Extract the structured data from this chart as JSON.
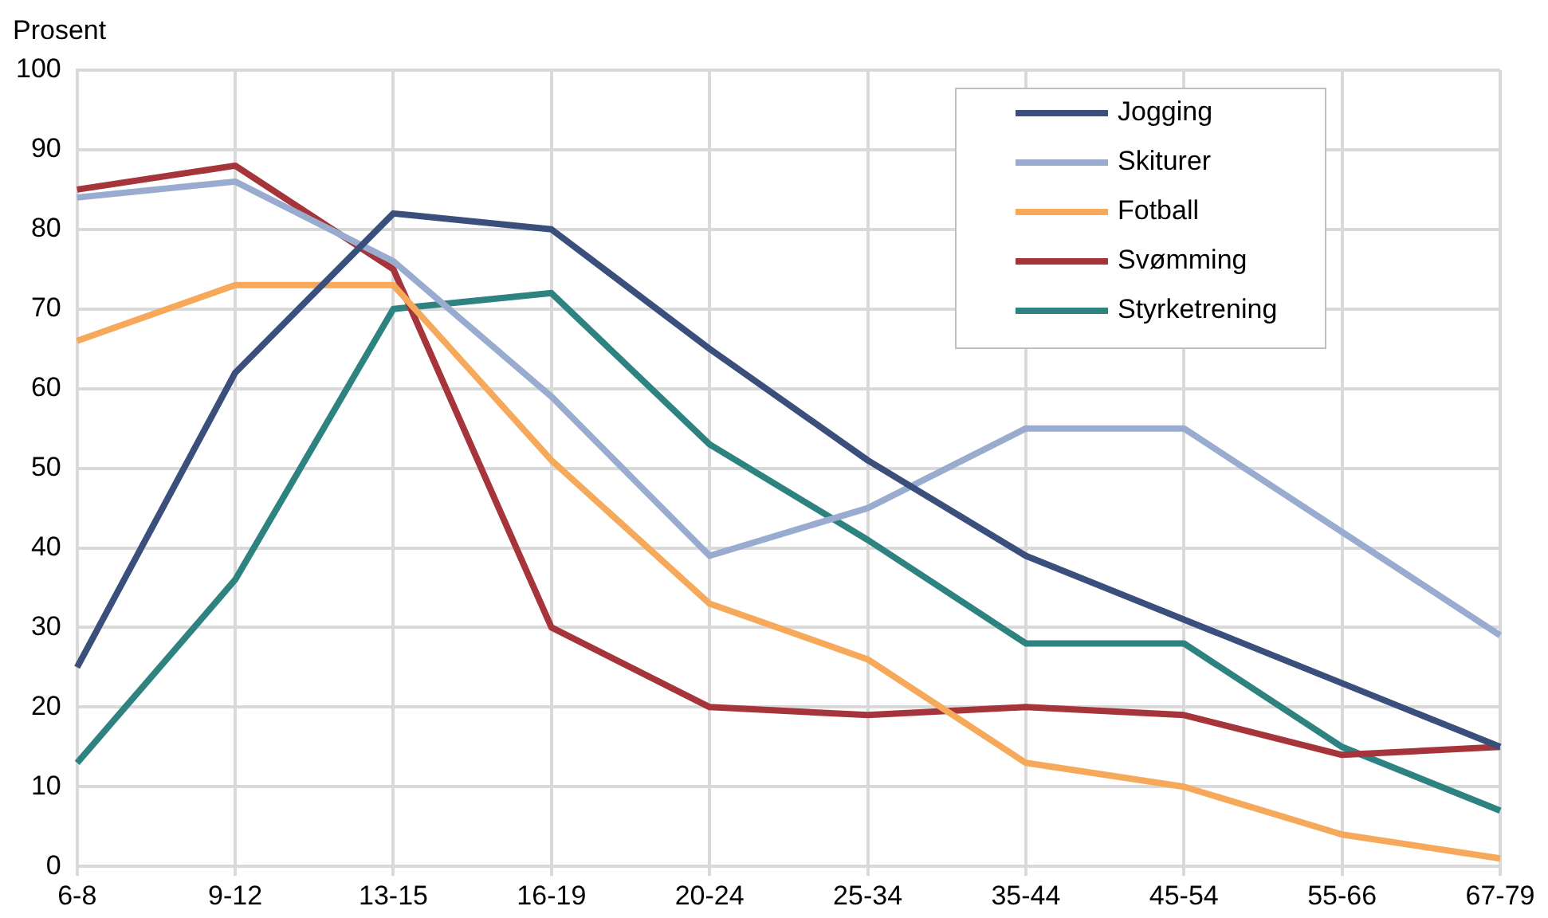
{
  "chart_data": {
    "type": "line",
    "ylabel": "Prosent",
    "categories": [
      "6-8",
      "9-12",
      "13-15",
      "16-19",
      "20-24",
      "25-34",
      "35-44",
      "45-54",
      "55-66",
      "67-79"
    ],
    "series": [
      {
        "name": "Jogging",
        "color": "#3b4f7d",
        "values": [
          25,
          62,
          82,
          80,
          65,
          51,
          39,
          31,
          23,
          15
        ]
      },
      {
        "name": "Skiturer",
        "color": "#9aabd0",
        "values": [
          84,
          86,
          76,
          59,
          39,
          45,
          55,
          55,
          42,
          29
        ]
      },
      {
        "name": "Fotball",
        "color": "#f6a95a",
        "values": [
          66,
          73,
          73,
          51,
          33,
          26,
          13,
          10,
          4,
          1
        ]
      },
      {
        "name": "Svømming",
        "color": "#a5353a",
        "values": [
          85,
          88,
          75,
          30,
          20,
          19,
          20,
          19,
          14,
          15
        ]
      },
      {
        "name": "Styrketrening",
        "color": "#2e8381",
        "values": [
          13,
          36,
          70,
          72,
          53,
          41,
          28,
          28,
          15,
          7
        ]
      }
    ],
    "ylim": [
      0,
      100
    ],
    "yticks": [
      0,
      10,
      20,
      30,
      40,
      50,
      60,
      70,
      80,
      90,
      100
    ],
    "grid": true,
    "legend": "top right",
    "marker": "none",
    "line_style": "solid"
  }
}
